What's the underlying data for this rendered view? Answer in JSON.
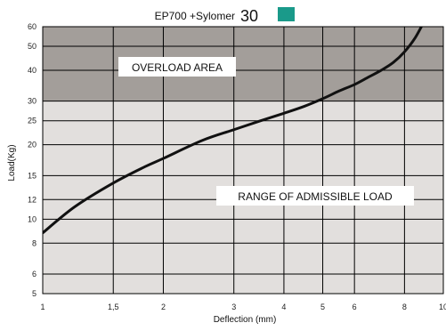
{
  "chart_data": {
    "type": "line",
    "title": "EP700  +Sylomer",
    "title_number": "30",
    "badge_color": "#1a9a8a",
    "xlabel": "Deflection (mm)",
    "ylabel": "Load(Kg)",
    "x_scale": "log",
    "y_scale": "log",
    "xlim": [
      1,
      10
    ],
    "ylim": [
      5,
      60
    ],
    "x_ticks": [
      1,
      1.5,
      2,
      3,
      4,
      5,
      6,
      8,
      10
    ],
    "x_tick_labels": [
      "1",
      "1,5",
      "2",
      "3",
      "4",
      "5",
      "6",
      "8",
      "10"
    ],
    "y_ticks": [
      5,
      6,
      8,
      10,
      12,
      15,
      20,
      25,
      30,
      40,
      50,
      60
    ],
    "y_tick_labels": [
      "5",
      "6",
      "8",
      "10",
      "12",
      "15",
      "20",
      "25",
      "30",
      "40",
      "50",
      "60"
    ],
    "grid": true,
    "overload_threshold": 30,
    "regions": [
      {
        "name": "overload",
        "label": "OVERLOAD AREA",
        "from": 30,
        "to": 60,
        "color": "#a39e9a"
      },
      {
        "name": "admissible",
        "label": "RANGE OF ADMISSIBLE LOAD",
        "from": 5,
        "to": 30,
        "color": "#e2dfdd"
      }
    ],
    "series": [
      {
        "color": "#111111",
        "x": [
          1,
          1.2,
          1.5,
          1.8,
          2,
          2.5,
          3,
          3.5,
          4,
          4.5,
          5,
          5.5,
          6,
          6.5,
          7,
          7.5,
          8,
          8.5,
          9
        ],
        "y": [
          8.8,
          11.2,
          14.0,
          16.3,
          17.6,
          20.8,
          23.0,
          25.0,
          26.8,
          28.6,
          30.7,
          33.0,
          35.0,
          37.5,
          40.0,
          43.0,
          47.5,
          54.0,
          64.0
        ]
      }
    ]
  }
}
